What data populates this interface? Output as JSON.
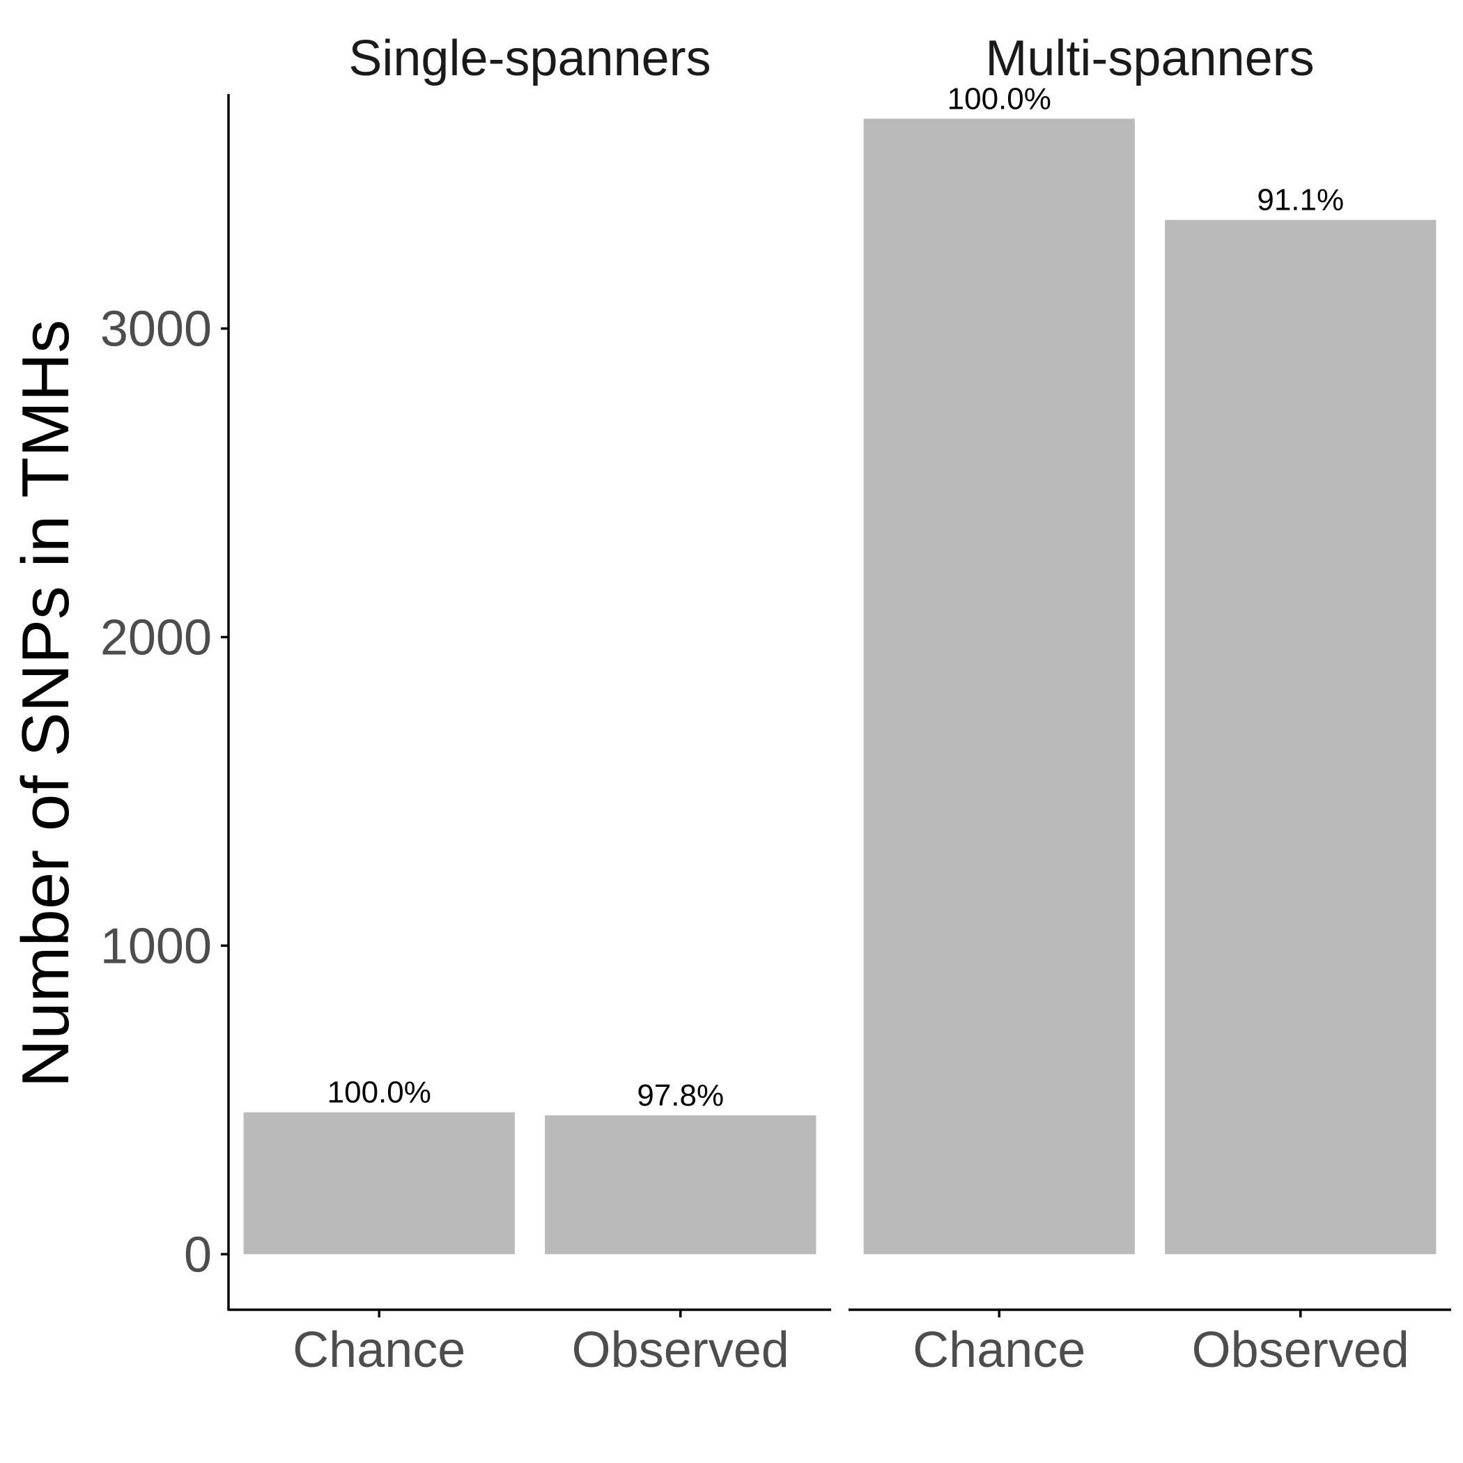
{
  "chart_data": {
    "type": "bar",
    "ylabel": "Number of SNPs in TMHs",
    "xlabel": "",
    "ylim": [
      -180,
      3760
    ],
    "yticks": [
      0,
      1000,
      2000,
      3000
    ],
    "grid": false,
    "bar_color": "#bababa",
    "categories": [
      "Chance",
      "Observed"
    ],
    "panels": [
      {
        "title": "Single-spanners",
        "categories": [
          "Chance",
          "Observed"
        ],
        "values": [
          460,
          450
        ],
        "labels": [
          "100.0%",
          "97.8%"
        ]
      },
      {
        "title": "Multi-spanners",
        "categories": [
          "Chance",
          "Observed"
        ],
        "values": [
          3680,
          3352
        ],
        "labels": [
          "100.0%",
          "91.1%"
        ]
      }
    ]
  }
}
